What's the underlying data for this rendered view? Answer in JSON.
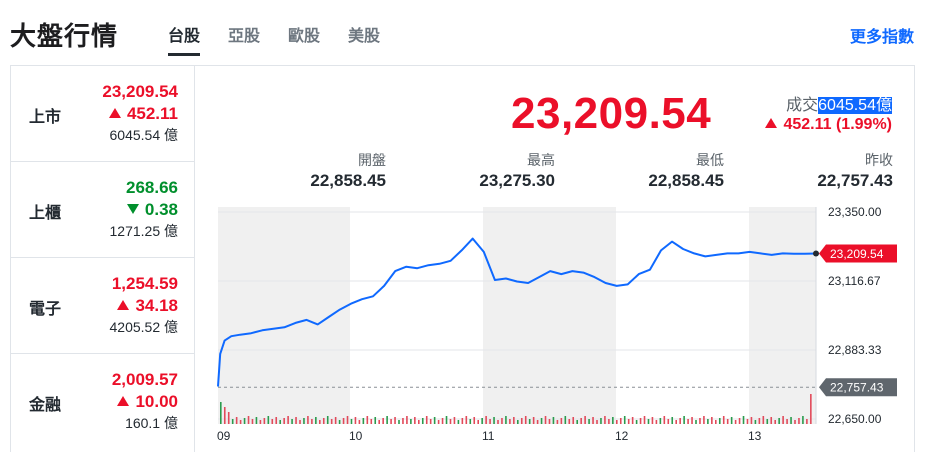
{
  "header": {
    "title": "大盤行情",
    "tabs": [
      {
        "label": "台股",
        "active": true
      },
      {
        "label": "亞股",
        "active": false
      },
      {
        "label": "歐股",
        "active": false
      },
      {
        "label": "美股",
        "active": false
      }
    ],
    "more_label": "更多指數"
  },
  "colors": {
    "up": "#eb0f29",
    "down": "#008f2c",
    "line": "#0f69ff",
    "highlight": "#0f69ff"
  },
  "markets": [
    {
      "name": "上市",
      "price": "23,209.54",
      "change": "452.11",
      "direction": "up",
      "volume": "6045.54 億"
    },
    {
      "name": "上櫃",
      "price": "268.66",
      "change": "0.38",
      "direction": "down",
      "volume": "1271.25 億"
    },
    {
      "name": "電子",
      "price": "1,254.59",
      "change": "34.18",
      "direction": "up",
      "volume": "4205.52 億"
    },
    {
      "name": "金融",
      "price": "2,009.57",
      "change": "10.00",
      "direction": "up",
      "volume": "160.1 億"
    }
  ],
  "quote": {
    "price": "23,209.54",
    "volume_label": "成交",
    "volume_value": "6045.54",
    "volume_unit": "億",
    "change": "452.11 (1.99%)",
    "stats": [
      {
        "label": "開盤",
        "value": "22,858.45"
      },
      {
        "label": "最高",
        "value": "23,275.30"
      },
      {
        "label": "最低",
        "value": "22,858.45"
      },
      {
        "label": "昨收",
        "value": "22,757.43"
      }
    ]
  },
  "chart_data": {
    "type": "line",
    "x_ticks": [
      "09",
      "10",
      "11",
      "12",
      "13"
    ],
    "y_ticks": [
      "23,350.00",
      "23,116.67",
      "22,883.33",
      "22,650.00"
    ],
    "ylim": [
      22650,
      23350
    ],
    "current_price_label": "23,209.54",
    "previous_close_label": "22,757.43",
    "previous_close": 22757.43,
    "series": [
      {
        "x": [
          0,
          1,
          3,
          6,
          10,
          15,
          20,
          25,
          30,
          35,
          40,
          45,
          50,
          55,
          60,
          65,
          70,
          75,
          80,
          85,
          90,
          95,
          100,
          105,
          110,
          115,
          120,
          125,
          130,
          135,
          140,
          145,
          150,
          155,
          160,
          165,
          170,
          175,
          180,
          185,
          190,
          195,
          200,
          205,
          210,
          215,
          220,
          225,
          230,
          235,
          240,
          245,
          250,
          255,
          260,
          265,
          270
        ],
        "y": [
          22760,
          22870,
          22915,
          22930,
          22935,
          22940,
          22950,
          22955,
          22960,
          22975,
          22985,
          22970,
          22995,
          23020,
          23040,
          23055,
          23065,
          23100,
          23150,
          23165,
          23160,
          23170,
          23175,
          23185,
          23220,
          23260,
          23215,
          23120,
          23125,
          23115,
          23110,
          23130,
          23150,
          23140,
          23150,
          23145,
          23130,
          23110,
          23100,
          23105,
          23140,
          23155,
          23220,
          23250,
          23225,
          23210,
          23200,
          23205,
          23210,
          23210,
          23215,
          23210,
          23205,
          23210,
          23209,
          23209,
          23209.54
        ]
      }
    ],
    "volume_note": "volume bars shown along bottom"
  }
}
